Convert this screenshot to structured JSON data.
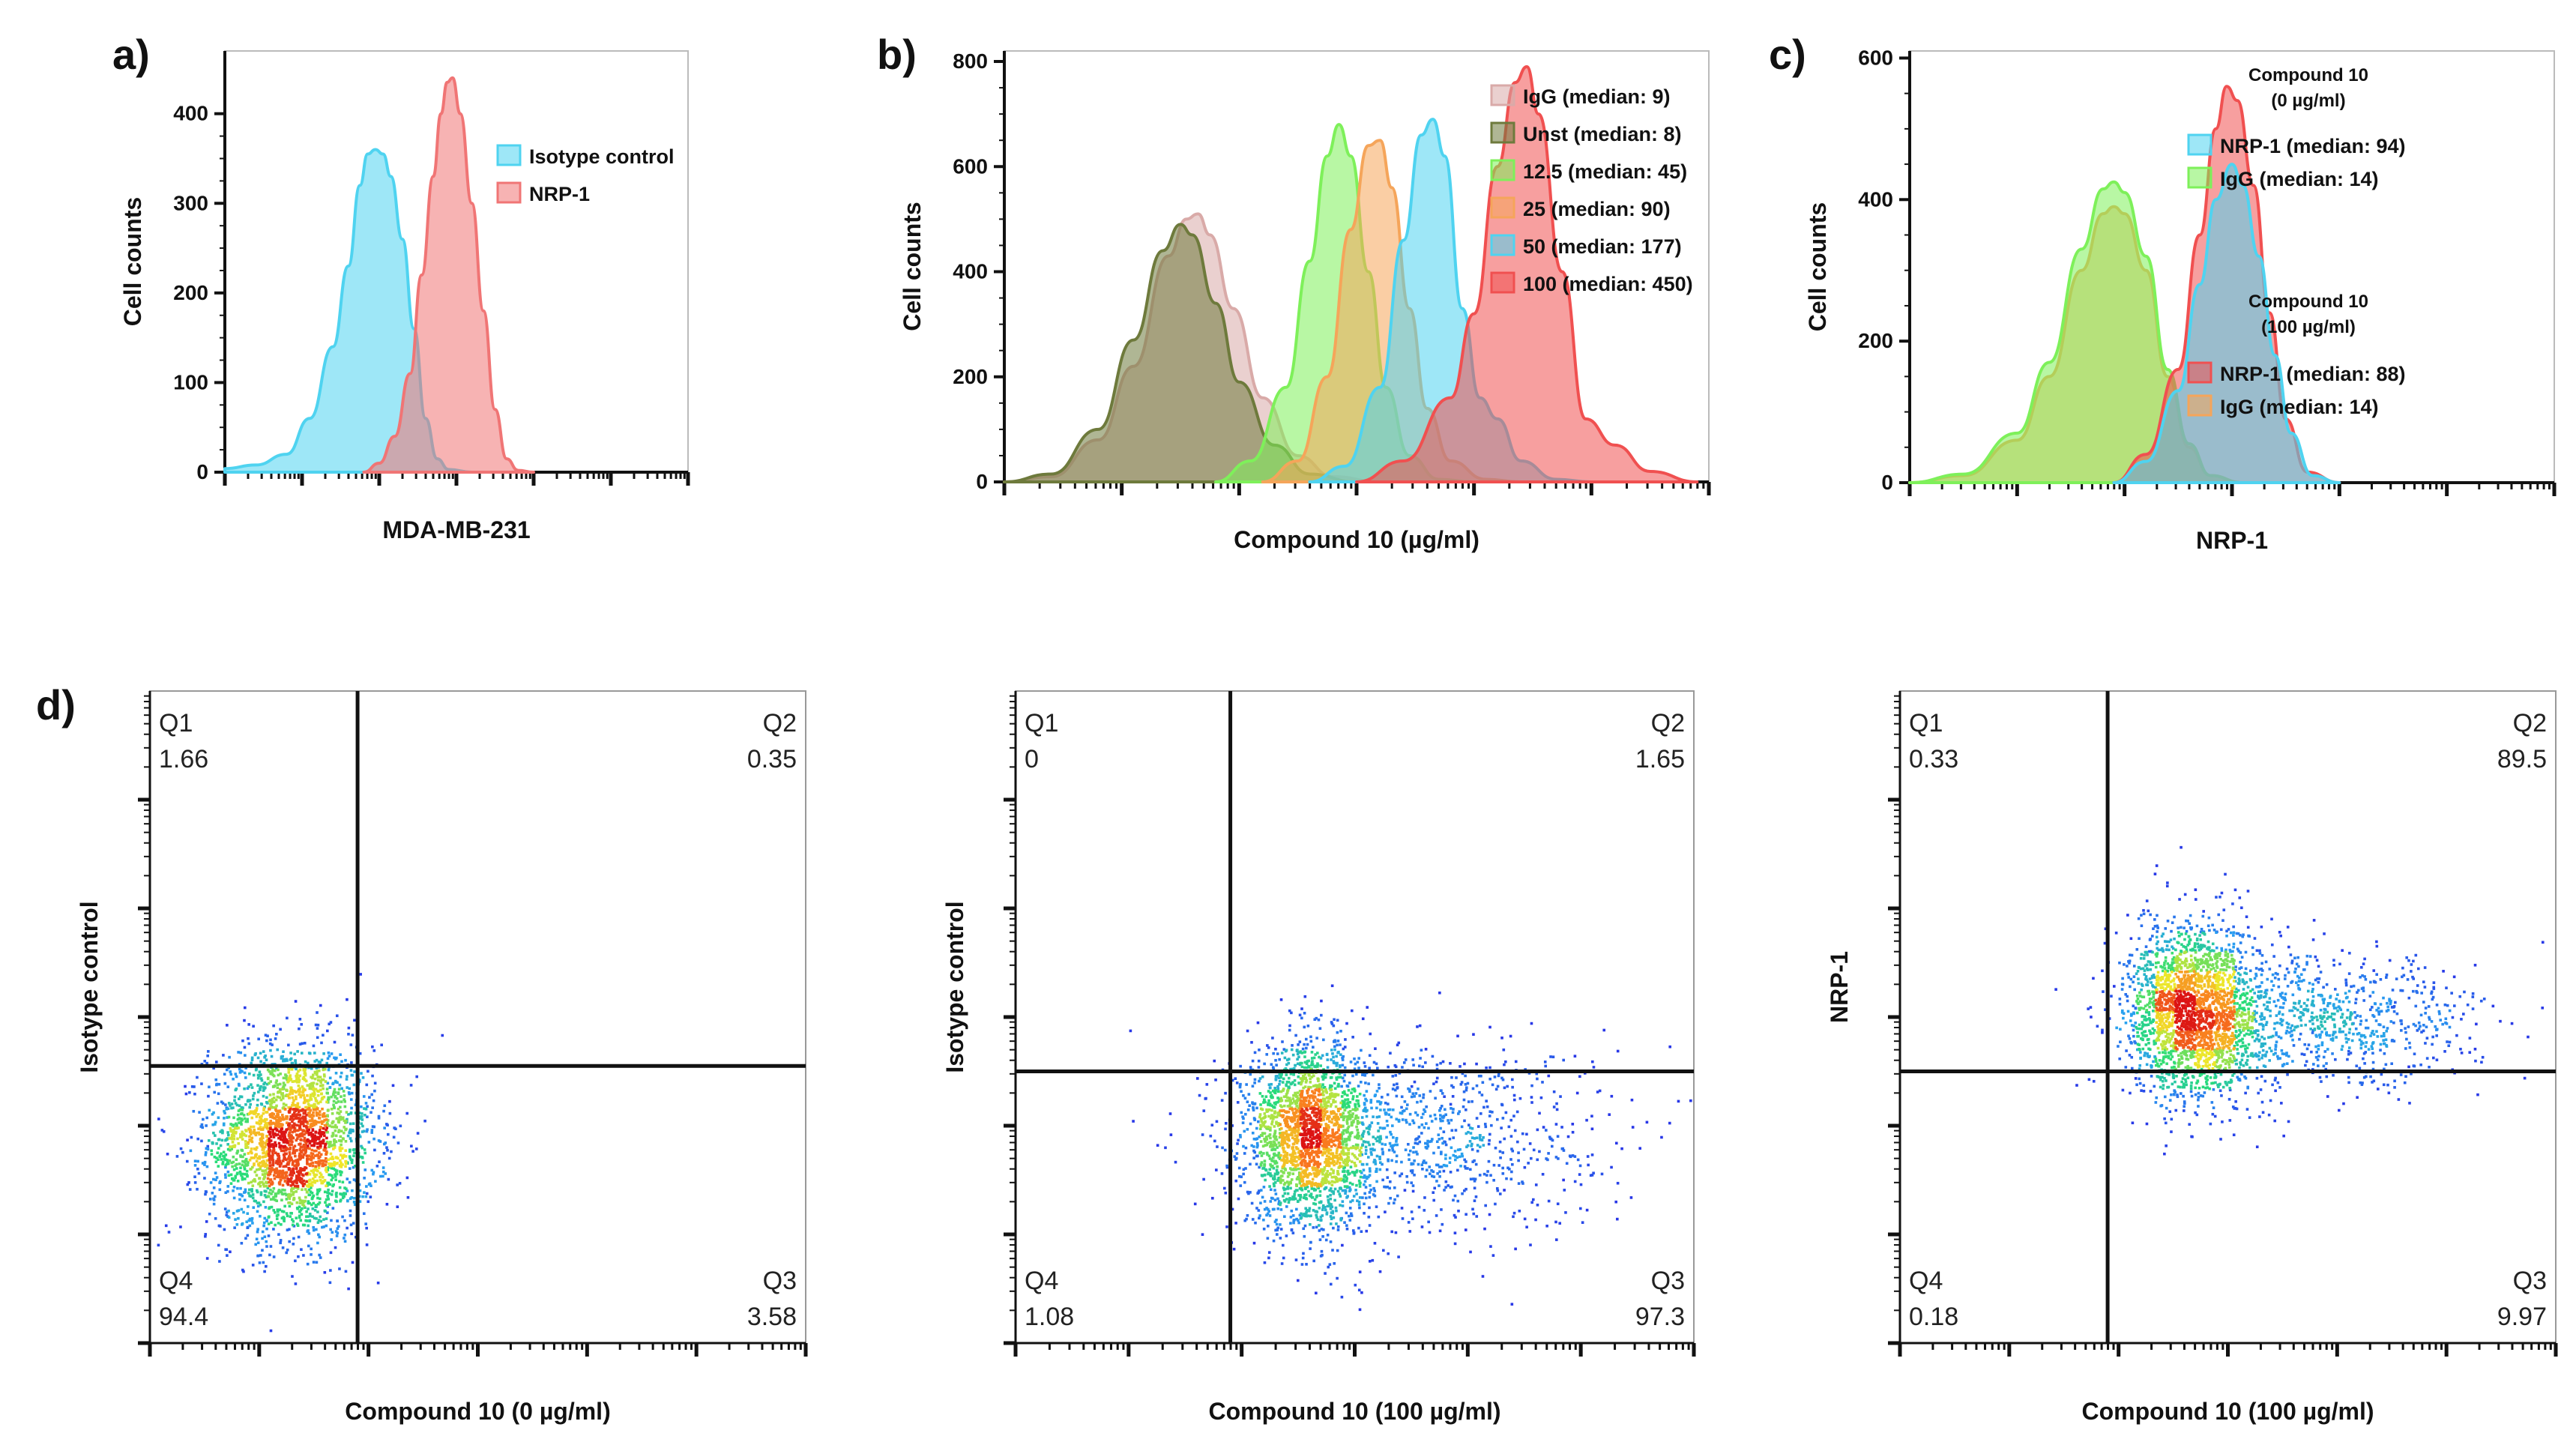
{
  "panel_labels": {
    "a": "a)",
    "b": "b)",
    "c": "c)",
    "d": "d)"
  },
  "colors": {
    "isotype": "#4fd3f0",
    "nrp1": "#f07575",
    "igg": "#d9aaa8",
    "unst": "#6e7a3c",
    "c12_5": "#7ef05a",
    "c25": "#f5a55a",
    "c50": "#4fd3f0",
    "c100": "#f05050",
    "quadrant_line": "#111111"
  },
  "chart_data": [
    {
      "id": "a",
      "type": "area",
      "title": "",
      "xlabel": "MDA-MB-231",
      "ylabel": "Cell counts",
      "xscale": "log",
      "x_range": [
        0,
        6
      ],
      "ylim": [
        0,
        470
      ],
      "yticks": [
        "0",
        "100",
        "200",
        "300",
        "400"
      ],
      "ytick_values": [
        0,
        100,
        200,
        300,
        400
      ],
      "legend_position": "top-right",
      "series": [
        {
          "name": "Isotype control",
          "color_key": "isotype",
          "points": [
            [
              0,
              4
            ],
            [
              0.4,
              8
            ],
            [
              0.8,
              20
            ],
            [
              1.1,
              60
            ],
            [
              1.4,
              140
            ],
            [
              1.6,
              230
            ],
            [
              1.75,
              320
            ],
            [
              1.85,
              355
            ],
            [
              1.95,
              360
            ],
            [
              2.05,
              355
            ],
            [
              2.15,
              330
            ],
            [
              2.3,
              260
            ],
            [
              2.45,
              160
            ],
            [
              2.6,
              60
            ],
            [
              2.75,
              15
            ],
            [
              2.9,
              3
            ],
            [
              3.2,
              0
            ]
          ]
        },
        {
          "name": "NRP-1",
          "color_key": "nrp1",
          "points": [
            [
              1.8,
              0
            ],
            [
              2.0,
              10
            ],
            [
              2.2,
              40
            ],
            [
              2.4,
              110
            ],
            [
              2.55,
              220
            ],
            [
              2.7,
              330
            ],
            [
              2.8,
              400
            ],
            [
              2.88,
              435
            ],
            [
              2.95,
              440
            ],
            [
              3.05,
              400
            ],
            [
              3.2,
              300
            ],
            [
              3.35,
              180
            ],
            [
              3.5,
              70
            ],
            [
              3.65,
              15
            ],
            [
              3.8,
              2
            ],
            [
              4.0,
              0
            ]
          ]
        }
      ]
    },
    {
      "id": "b",
      "type": "area",
      "title": "",
      "xlabel": "Compound 10 (µg/ml)",
      "ylabel": "Cell counts",
      "xscale": "log",
      "x_range": [
        0,
        6
      ],
      "ylim": [
        0,
        820
      ],
      "yticks": [
        "0",
        "200",
        "400",
        "600",
        "800"
      ],
      "ytick_values": [
        0,
        200,
        400,
        600,
        800
      ],
      "legend_position": "top-right",
      "series": [
        {
          "name": "IgG (median: 9)",
          "color_key": "igg",
          "points": [
            [
              0,
              0
            ],
            [
              0.4,
              10
            ],
            [
              0.8,
              80
            ],
            [
              1.1,
              220
            ],
            [
              1.4,
              430
            ],
            [
              1.55,
              500
            ],
            [
              1.65,
              510
            ],
            [
              1.75,
              470
            ],
            [
              1.95,
              330
            ],
            [
              2.2,
              160
            ],
            [
              2.5,
              50
            ],
            [
              2.8,
              10
            ],
            [
              3.2,
              0
            ]
          ]
        },
        {
          "name": "Unst (median: 8)",
          "color_key": "unst",
          "points": [
            [
              0,
              0
            ],
            [
              0.4,
              15
            ],
            [
              0.8,
              100
            ],
            [
              1.1,
              270
            ],
            [
              1.35,
              440
            ],
            [
              1.5,
              490
            ],
            [
              1.6,
              470
            ],
            [
              1.8,
              340
            ],
            [
              2.0,
              190
            ],
            [
              2.3,
              70
            ],
            [
              2.6,
              15
            ],
            [
              3.0,
              0
            ]
          ]
        },
        {
          "name": "12.5 (median: 45)",
          "color_key": "c12_5",
          "points": [
            [
              1.8,
              0
            ],
            [
              2.1,
              40
            ],
            [
              2.4,
              180
            ],
            [
              2.6,
              420
            ],
            [
              2.75,
              620
            ],
            [
              2.85,
              680
            ],
            [
              2.95,
              620
            ],
            [
              3.1,
              400
            ],
            [
              3.25,
              180
            ],
            [
              3.45,
              50
            ],
            [
              3.7,
              5
            ],
            [
              4.0,
              0
            ]
          ]
        },
        {
          "name": "25 (median: 90)",
          "color_key": "c25",
          "points": [
            [
              2.2,
              0
            ],
            [
              2.5,
              40
            ],
            [
              2.75,
              200
            ],
            [
              2.95,
              480
            ],
            [
              3.1,
              640
            ],
            [
              3.2,
              650
            ],
            [
              3.3,
              560
            ],
            [
              3.45,
              330
            ],
            [
              3.6,
              140
            ],
            [
              3.8,
              40
            ],
            [
              4.1,
              5
            ],
            [
              4.4,
              0
            ]
          ]
        },
        {
          "name": "50 (median: 177)",
          "color_key": "c50",
          "points": [
            [
              2.6,
              0
            ],
            [
              2.9,
              30
            ],
            [
              3.2,
              180
            ],
            [
              3.4,
              460
            ],
            [
              3.55,
              660
            ],
            [
              3.65,
              690
            ],
            [
              3.75,
              620
            ],
            [
              3.9,
              330
            ],
            [
              4.05,
              160
            ],
            [
              4.2,
              120
            ],
            [
              4.4,
              40
            ],
            [
              4.7,
              5
            ],
            [
              5.0,
              0
            ]
          ]
        },
        {
          "name": "100 (median: 450)",
          "color_key": "c100",
          "points": [
            [
              3.0,
              0
            ],
            [
              3.4,
              40
            ],
            [
              3.8,
              160
            ],
            [
              4.0,
              320
            ],
            [
              4.2,
              600
            ],
            [
              4.35,
              760
            ],
            [
              4.45,
              790
            ],
            [
              4.55,
              700
            ],
            [
              4.75,
              400
            ],
            [
              4.95,
              120
            ],
            [
              5.2,
              70
            ],
            [
              5.5,
              20
            ],
            [
              5.9,
              0
            ]
          ]
        }
      ]
    },
    {
      "id": "c",
      "type": "area",
      "title": "",
      "xlabel": "NRP-1",
      "ylabel": "Cell counts",
      "xscale": "log",
      "x_range": [
        0,
        6
      ],
      "ylim": [
        0,
        610
      ],
      "yticks": [
        "0",
        "200",
        "400",
        "600"
      ],
      "ytick_values": [
        0,
        200,
        400,
        600
      ],
      "legend_position": "top-right",
      "legend_groups": [
        {
          "title_line1": "Compound 10",
          "title_line2": "(0 µg/ml)",
          "items": [
            "NRP-1 (median: 94)",
            "IgG (median: 14)"
          ]
        },
        {
          "title_line1": "Compound 10",
          "title_line2": "(100 µg/ml)",
          "items": [
            "NRP-1 (median: 88)",
            "IgG (median: 14)"
          ]
        }
      ],
      "series": [
        {
          "name": "IgG (median: 14)",
          "group": "100 µg/ml",
          "color_key": "c25",
          "points": [
            [
              0,
              0
            ],
            [
              0.5,
              10
            ],
            [
              1.0,
              60
            ],
            [
              1.3,
              150
            ],
            [
              1.6,
              300
            ],
            [
              1.8,
              380
            ],
            [
              1.9,
              390
            ],
            [
              2.0,
              380
            ],
            [
              2.2,
              300
            ],
            [
              2.4,
              150
            ],
            [
              2.6,
              50
            ],
            [
              2.8,
              10
            ],
            [
              3.1,
              0
            ]
          ]
        },
        {
          "name": "IgG (median: 14)",
          "group": "0 µg/ml",
          "color_key": "c12_5",
          "points": [
            [
              0,
              0
            ],
            [
              0.5,
              12
            ],
            [
              1.0,
              70
            ],
            [
              1.3,
              170
            ],
            [
              1.6,
              330
            ],
            [
              1.8,
              415
            ],
            [
              1.9,
              425
            ],
            [
              2.0,
              410
            ],
            [
              2.2,
              320
            ],
            [
              2.4,
              160
            ],
            [
              2.6,
              55
            ],
            [
              2.8,
              10
            ],
            [
              3.1,
              0
            ]
          ]
        },
        {
          "name": "NRP-1 (median: 88)",
          "group": "100 µg/ml",
          "color_key": "c100",
          "points": [
            [
              1.9,
              0
            ],
            [
              2.2,
              40
            ],
            [
              2.5,
              160
            ],
            [
              2.7,
              350
            ],
            [
              2.85,
              500
            ],
            [
              2.95,
              560
            ],
            [
              3.05,
              540
            ],
            [
              3.2,
              420
            ],
            [
              3.35,
              240
            ],
            [
              3.5,
              90
            ],
            [
              3.7,
              15
            ],
            [
              4.0,
              0
            ]
          ]
        },
        {
          "name": "NRP-1 (median: 94)",
          "group": "0 µg/ml",
          "color_key": "c50",
          "points": [
            [
              1.9,
              0
            ],
            [
              2.2,
              30
            ],
            [
              2.5,
              130
            ],
            [
              2.7,
              280
            ],
            [
              2.85,
              400
            ],
            [
              3.0,
              450
            ],
            [
              3.1,
              420
            ],
            [
              3.25,
              320
            ],
            [
              3.4,
              180
            ],
            [
              3.55,
              70
            ],
            [
              3.75,
              10
            ],
            [
              4.0,
              0
            ]
          ]
        }
      ]
    },
    {
      "id": "d1",
      "type": "scatter",
      "title": "",
      "xlabel": "Compound 10 (0 µg/ml)",
      "ylabel": "Isotype control",
      "x_range": [
        0,
        6
      ],
      "y_range": [
        0,
        6
      ],
      "gate_x": 1.9,
      "gate_y": 2.55,
      "quadrants": {
        "Q1": "1.66",
        "Q2": "0.35",
        "Q3": "3.58",
        "Q4": "94.4"
      },
      "clusters": [
        {
          "cx": 1.3,
          "cy": 1.85,
          "sx": 0.38,
          "sy": 0.45,
          "n": 2600
        }
      ]
    },
    {
      "id": "d2",
      "type": "scatter",
      "title": "",
      "xlabel": "Compound 10 (100 µg/ml)",
      "ylabel": "Isotype control",
      "x_range": [
        0,
        6
      ],
      "y_range": [
        0,
        6
      ],
      "gate_x": 1.9,
      "gate_y": 2.5,
      "quadrants": {
        "Q1": "0",
        "Q2": "1.65",
        "Q3": "97.3",
        "Q4": "1.08"
      },
      "clusters": [
        {
          "cx": 2.6,
          "cy": 1.9,
          "sx": 0.28,
          "sy": 0.42,
          "n": 2200
        },
        {
          "cx": 3.6,
          "cy": 1.9,
          "sx": 0.8,
          "sy": 0.45,
          "n": 900
        }
      ]
    },
    {
      "id": "d3",
      "type": "scatter",
      "title": "",
      "xlabel": "Compound 10 (100 µg/ml)",
      "ylabel": "NRP-1",
      "x_range": [
        0,
        6
      ],
      "y_range": [
        0,
        6
      ],
      "gate_x": 1.9,
      "gate_y": 2.5,
      "quadrants": {
        "Q1": "0.33",
        "Q2": "89.5",
        "Q3": "9.97",
        "Q4": "0.18"
      },
      "clusters": [
        {
          "cx": 2.7,
          "cy": 3.05,
          "sx": 0.3,
          "sy": 0.4,
          "n": 2200
        },
        {
          "cx": 3.8,
          "cy": 2.95,
          "sx": 0.75,
          "sy": 0.3,
          "n": 900
        }
      ]
    }
  ]
}
